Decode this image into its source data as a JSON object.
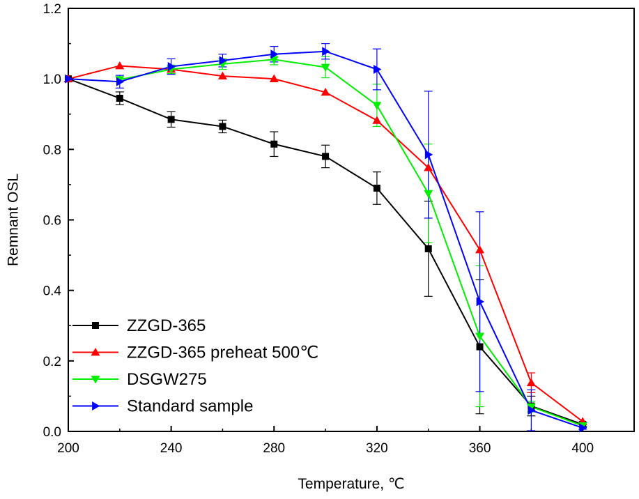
{
  "chart_data": {
    "type": "line",
    "title": "",
    "xlabel": "Temperature, ℃",
    "ylabel": "Remnant OSL",
    "xlim": [
      200,
      420
    ],
    "ylim": [
      0,
      1.2
    ],
    "x_ticks": [
      200,
      240,
      280,
      320,
      360,
      400
    ],
    "x_tick_labels": [
      "200",
      "240",
      "280",
      "320",
      "360",
      "400"
    ],
    "y_ticks": [
      0.0,
      0.2,
      0.4,
      0.6,
      0.8,
      1.0,
      1.2
    ],
    "y_tick_labels": [
      "0.0",
      "0.2",
      "0.4",
      "0.6",
      "0.8",
      "1.0",
      "1.2"
    ],
    "grid": false,
    "legend_position": "bottom-left",
    "series": [
      {
        "name": "ZZGD-365",
        "color": "#000000",
        "marker": "square",
        "x": [
          200,
          220,
          240,
          260,
          280,
          300,
          320,
          340,
          360,
          380,
          400
        ],
        "y": [
          1.0,
          0.945,
          0.885,
          0.865,
          0.815,
          0.78,
          0.69,
          0.518,
          0.24,
          0.072,
          0.02
        ],
        "err": [
          0,
          0.018,
          0.022,
          0.018,
          0.035,
          0.032,
          0.046,
          0.135,
          0.19,
          0.028,
          0.006
        ]
      },
      {
        "name": "ZZGD-365 preheat 500℃",
        "color": "#ff0000",
        "marker": "triangle-up",
        "x": [
          200,
          220,
          240,
          260,
          280,
          300,
          320,
          340,
          360,
          380,
          400
        ],
        "y": [
          1.0,
          1.037,
          1.027,
          1.008,
          1.0,
          0.962,
          0.882,
          0.748,
          0.515,
          0.138,
          0.028
        ],
        "err": [
          0,
          0,
          0,
          0,
          0,
          0,
          0,
          0,
          0,
          0.028,
          0
        ]
      },
      {
        "name": "DSGW275",
        "color": "#00ee00",
        "marker": "triangle-down",
        "x": [
          220,
          240,
          260,
          280,
          300,
          320,
          340,
          360,
          380,
          400
        ],
        "y": [
          0.998,
          1.027,
          1.042,
          1.055,
          1.033,
          0.925,
          0.675,
          0.27,
          0.07,
          0.016
        ],
        "err": [
          0,
          0.012,
          0.015,
          0.015,
          0.03,
          0.06,
          0.14,
          0.2,
          0.015,
          0.004
        ]
      },
      {
        "name": "Standard sample",
        "color": "#0000ff",
        "marker": "triangle-right",
        "x": [
          200,
          220,
          240,
          260,
          280,
          300,
          320,
          340,
          360,
          380,
          400
        ],
        "y": [
          1.0,
          0.992,
          1.035,
          1.052,
          1.07,
          1.078,
          1.027,
          0.785,
          0.368,
          0.06,
          0.01
        ],
        "err": [
          0,
          0.018,
          0.022,
          0.018,
          0.022,
          0.022,
          0.058,
          0.18,
          0.255,
          0.058,
          0.004
        ]
      }
    ]
  }
}
